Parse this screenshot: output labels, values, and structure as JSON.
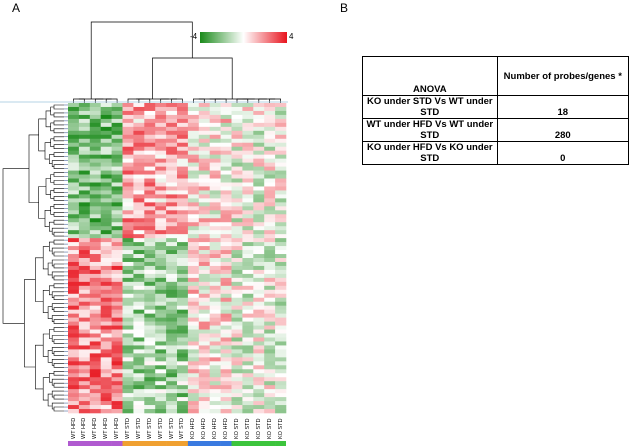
{
  "panels": {
    "a": "A",
    "b": "B"
  },
  "heatmap": {
    "colorbar": {
      "min_label": "-4",
      "max_label": "4",
      "low_color": "#1a8a1a",
      "mid_color": "#ffffff",
      "high_color": "#e8141e"
    },
    "column_labels": [
      "WT HFD",
      "WT HFD",
      "WT HFD",
      "WT HFD",
      "WT HFD",
      "WT STD",
      "WT STD",
      "WT STD",
      "WT STD",
      "WT STD",
      "WT STD",
      "KO HFD",
      "KO HFD",
      "KO HFD",
      "KO HFD",
      "KO STD",
      "KO STD",
      "KO STD",
      "KO STD",
      "KO STD"
    ],
    "group_colors": {
      "WT HFD": "#b05ad0",
      "WT STD": "#f0a030",
      "KO HFD": "#3a7ae0",
      "KO STD": "#3cc43c"
    }
  },
  "anova_table": {
    "header": {
      "col1": "ANOVA",
      "col2": "Number of probes/genes *"
    },
    "rows": [
      {
        "comparison": "KO under STD Vs WT under STD",
        "count": "18"
      },
      {
        "comparison": "WT under HFD Vs  WT under STD",
        "count": "280"
      },
      {
        "comparison": "KO under HFD Vs KO under STD",
        "count": "0"
      }
    ]
  }
}
